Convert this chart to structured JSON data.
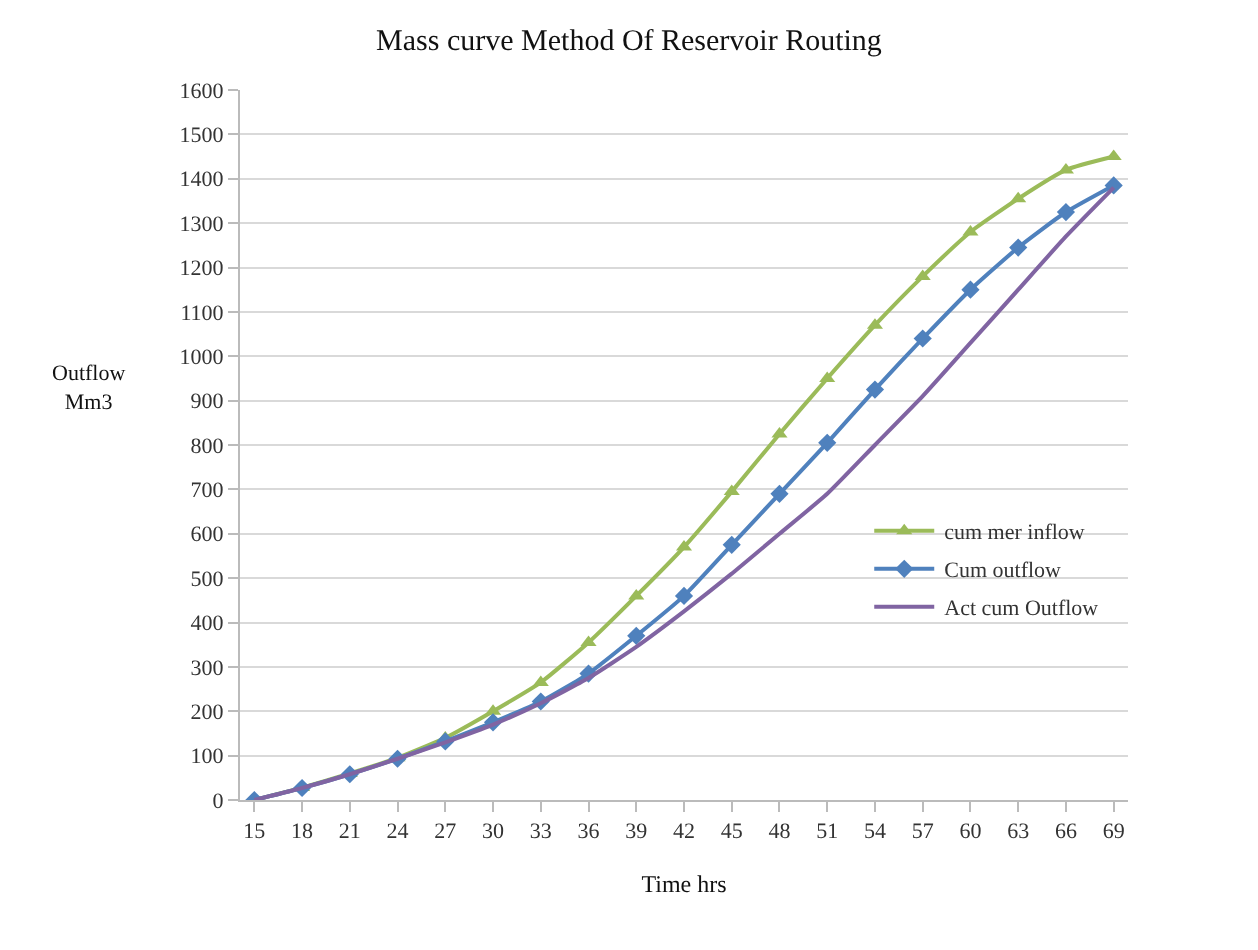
{
  "chart_data": {
    "type": "line",
    "title": "Mass curve Method Of Reservoir Routing",
    "xlabel": "Time hrs",
    "ylabel": "Outflow\nMm3",
    "categories": [
      "15",
      "18",
      "21",
      "24",
      "27",
      "30",
      "33",
      "36",
      "39",
      "42",
      "45",
      "48",
      "51",
      "54",
      "57",
      "60",
      "63",
      "66",
      "69"
    ],
    "series": [
      {
        "name": "cum mer inflow",
        "color": "#9bbb59",
        "marker": "triangle",
        "values": [
          0,
          28,
          60,
          95,
          140,
          200,
          265,
          355,
          460,
          570,
          695,
          825,
          950,
          1070,
          1180,
          1280,
          1355,
          1420,
          1450
        ]
      },
      {
        "name": "Cum outflow",
        "color": "#4f81bd",
        "marker": "diamond",
        "values": [
          0,
          27,
          58,
          93,
          132,
          175,
          222,
          285,
          370,
          460,
          575,
          690,
          805,
          925,
          1040,
          1150,
          1245,
          1325,
          1385
        ]
      },
      {
        "name": "Act cum Outflow",
        "color": "#8064a2",
        "marker": "none",
        "values": [
          0,
          27,
          58,
          93,
          130,
          170,
          218,
          275,
          345,
          425,
          510,
          600,
          690,
          800,
          910,
          1030,
          1150,
          1270,
          1380
        ]
      }
    ],
    "ylim": [
      0,
      1600
    ],
    "yticks": [
      0,
      100,
      200,
      300,
      400,
      500,
      600,
      700,
      800,
      900,
      1000,
      1100,
      1200,
      1300,
      1400,
      1500,
      1600
    ],
    "grid": "y",
    "legend": "right"
  }
}
